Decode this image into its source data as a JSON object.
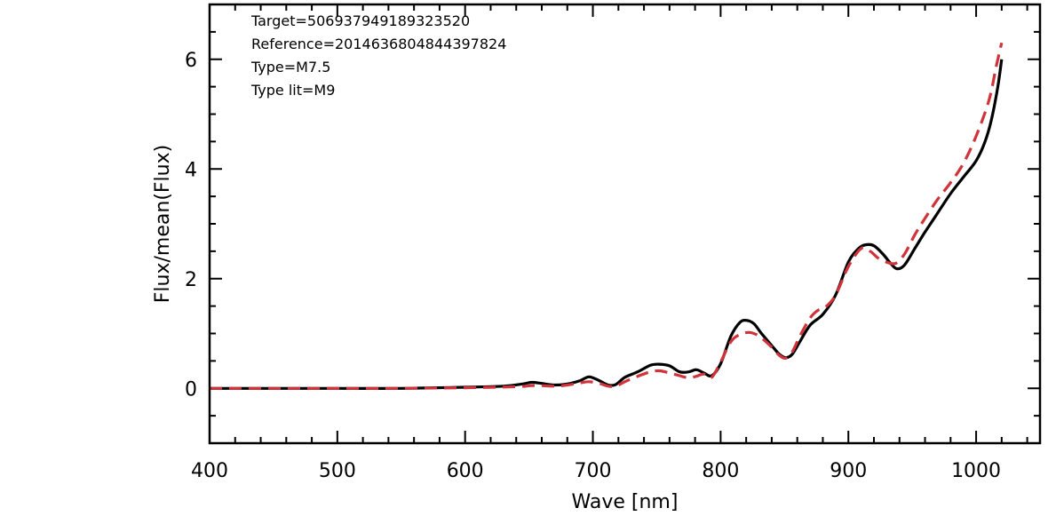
{
  "chart_data": {
    "type": "line",
    "title": "",
    "xlabel": "Wave [nm]",
    "ylabel": "Flux/mean(Flux)",
    "xlim": [
      400,
      1050
    ],
    "ylim": [
      -1,
      7
    ],
    "x_ticks": [
      400,
      500,
      600,
      700,
      800,
      900,
      1000
    ],
    "y_ticks": [
      0,
      2,
      4,
      6
    ],
    "grid": false,
    "legend": "none",
    "annotations": [
      "Target=506937949189323520",
      "Reference=2014636804844397824",
      "Type=M7.5",
      "Type lit=M9"
    ],
    "series": [
      {
        "color": "#000000",
        "style": "solid",
        "x": [
          400,
          450,
          500,
          550,
          600,
          630,
          645,
          652,
          660,
          670,
          680,
          690,
          697,
          705,
          712,
          718,
          725,
          735,
          745,
          752,
          760,
          768,
          775,
          781,
          787,
          793,
          800,
          808,
          815,
          820,
          826,
          832,
          840,
          846,
          851,
          856,
          862,
          870,
          880,
          890,
          900,
          908,
          914,
          920,
          927,
          933,
          938,
          944,
          952,
          960,
          970,
          980,
          990,
          1000,
          1007,
          1012,
          1017,
          1020
        ],
        "y": [
          0,
          0,
          0,
          0,
          0.02,
          0.04,
          0.08,
          0.11,
          0.09,
          0.06,
          0.08,
          0.14,
          0.21,
          0.14,
          0.06,
          0.07,
          0.2,
          0.3,
          0.42,
          0.44,
          0.41,
          0.3,
          0.3,
          0.34,
          0.28,
          0.23,
          0.45,
          0.95,
          1.2,
          1.24,
          1.18,
          1.0,
          0.78,
          0.62,
          0.56,
          0.62,
          0.85,
          1.15,
          1.35,
          1.7,
          2.3,
          2.55,
          2.62,
          2.6,
          2.45,
          2.28,
          2.18,
          2.25,
          2.55,
          2.85,
          3.2,
          3.55,
          3.85,
          4.15,
          4.5,
          4.9,
          5.5,
          6.0
        ]
      },
      {
        "color": "#d0333a",
        "style": "dashed",
        "x": [
          400,
          450,
          500,
          550,
          600,
          640,
          652,
          660,
          670,
          680,
          690,
          697,
          705,
          712,
          718,
          725,
          735,
          745,
          752,
          760,
          768,
          775,
          781,
          787,
          793,
          800,
          808,
          815,
          822,
          828,
          834,
          840,
          846,
          851,
          856,
          862,
          870,
          876,
          882,
          890,
          900,
          910,
          917,
          923,
          930,
          937,
          944,
          952,
          960,
          970,
          980,
          990,
          1000,
          1010,
          1016,
          1020
        ],
        "y": [
          0,
          0,
          0,
          0,
          0.01,
          0.03,
          0.05,
          0.05,
          0.04,
          0.06,
          0.1,
          0.12,
          0.09,
          0.04,
          0.04,
          0.12,
          0.22,
          0.3,
          0.32,
          0.28,
          0.23,
          0.19,
          0.22,
          0.26,
          0.2,
          0.48,
          0.85,
          0.98,
          1.02,
          0.98,
          0.88,
          0.75,
          0.6,
          0.55,
          0.66,
          0.95,
          1.28,
          1.42,
          1.48,
          1.7,
          2.22,
          2.55,
          2.5,
          2.38,
          2.3,
          2.28,
          2.45,
          2.8,
          3.1,
          3.45,
          3.75,
          4.1,
          4.6,
          5.25,
          5.9,
          6.3
        ]
      }
    ]
  }
}
